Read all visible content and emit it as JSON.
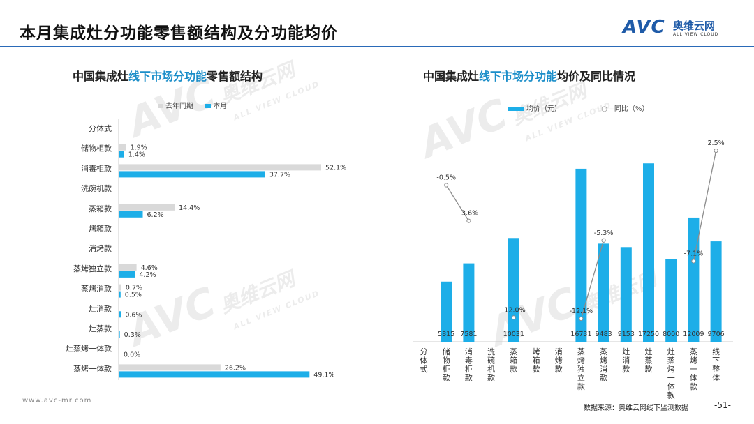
{
  "page": {
    "title": "本月集成灶分功能零售额结构及分功能均价",
    "logo_mark": "AVC",
    "logo_cn": "奥维云网",
    "logo_en": "ALL VIEW CLOUD",
    "watermark_mark": "AVC",
    "watermark_cn": "奥维云网",
    "watermark_en": "ALL VIEW CLOUD",
    "footer_url": "www.avc-mr.com",
    "source": "数据来源：奥维云网线下监测数据",
    "page_number": "-51-",
    "colors": {
      "accent": "#1daee8",
      "grey": "#d9d9d9",
      "brand": "#1f5ba8",
      "rule": "#2a6ab8"
    }
  },
  "left_chart": {
    "title_pre": "中国集成灶",
    "title_hl": "线下市场分功能",
    "title_post": "零售额结构",
    "legend_prev": "去年同期",
    "legend_cur": "本月"
  },
  "right_chart": {
    "title_pre": "中国集成灶",
    "title_hl": "线下市场分功能",
    "title_post": "均价及同比情况",
    "legend_price": "均价（元）",
    "legend_yoy": "同比（%）"
  },
  "chart_data": [
    {
      "type": "bar",
      "orientation": "horizontal",
      "categories": [
        "分体式",
        "储物柜款",
        "消毒柜款",
        "洗碗机款",
        "蒸箱款",
        "烤箱款",
        "消烤款",
        "蒸烤独立款",
        "蒸烤消款",
        "灶消款",
        "灶蒸款",
        "灶蒸烤一体款",
        "蒸烤一体款"
      ],
      "series": [
        {
          "name": "去年同期",
          "color": "#d9d9d9",
          "values": [
            null,
            1.9,
            52.1,
            null,
            14.4,
            null,
            null,
            4.6,
            0.7,
            null,
            null,
            null,
            26.2
          ],
          "labels": [
            "",
            "1.9%",
            "52.1%",
            "",
            "14.4%",
            "",
            "",
            "4.6%",
            "0.7%",
            "",
            "",
            "",
            "26.2%"
          ]
        },
        {
          "name": "本月",
          "color": "#1daee8",
          "values": [
            null,
            1.4,
            37.7,
            null,
            6.2,
            null,
            null,
            4.2,
            0.5,
            0.6,
            0.3,
            0.0,
            49.1
          ],
          "labels": [
            "",
            "1.4%",
            "37.7%",
            "",
            "6.2%",
            "",
            "",
            "4.2%",
            "0.5%",
            "0.6%",
            "0.3%",
            "0.0%",
            "49.1%"
          ]
        }
      ],
      "xlim": [
        0,
        60
      ]
    },
    {
      "type": "bar+line",
      "categories": [
        "分体式",
        "储物柜款",
        "消毒柜款",
        "洗碗机款",
        "蒸箱款",
        "烤箱款",
        "消烤款",
        "蒸烤独立款",
        "蒸烤消款",
        "灶消款",
        "灶蒸款",
        "灶蒸烤一体款",
        "蒸烤一体款",
        "线下整体"
      ],
      "category_labels_vertical": [
        "分\n体\n式",
        "储\n物\n柜\n款",
        "消\n毒\n柜\n款",
        "洗\n碗\n机\n款",
        "蒸\n箱\n款",
        "烤\n箱\n款",
        "消\n烤\n款",
        "蒸\n烤\n独\n立\n款",
        "蒸\n烤\n消\n款",
        "灶\n消\n款",
        "灶\n蒸\n款",
        "灶\n蒸\n烤\n一\n体\n款",
        "蒸\n烤\n一\n体\n款",
        "线\n下\n整\n体"
      ],
      "series": [
        {
          "name": "均价（元）",
          "kind": "bar",
          "color": "#1daee8",
          "values": [
            null,
            5815,
            7581,
            null,
            10031,
            null,
            null,
            16731,
            9483,
            9153,
            17250,
            8000,
            12009,
            9706
          ],
          "labels": [
            "",
            "5815",
            "7581",
            "",
            "10031",
            "",
            "",
            "16731",
            "9483",
            "9153",
            "17250",
            "8000",
            "12009",
            "9706"
          ]
        },
        {
          "name": "同比（%）",
          "kind": "line",
          "color": "#8c8c8c",
          "values": [
            null,
            -0.5,
            -3.6,
            null,
            -12.0,
            null,
            null,
            -12.1,
            -5.3,
            null,
            null,
            null,
            -7.1,
            2.5
          ],
          "labels": [
            "",
            "-0.5%",
            "-3.6%",
            "",
            "-12.0%",
            "",
            "",
            "-12.1%",
            "-5.3%",
            "",
            "",
            "",
            "-7.1%",
            "2.5%"
          ]
        }
      ],
      "ylim_price": [
        0,
        18500
      ],
      "ylim_yoy": [
        -14,
        4
      ]
    }
  ]
}
